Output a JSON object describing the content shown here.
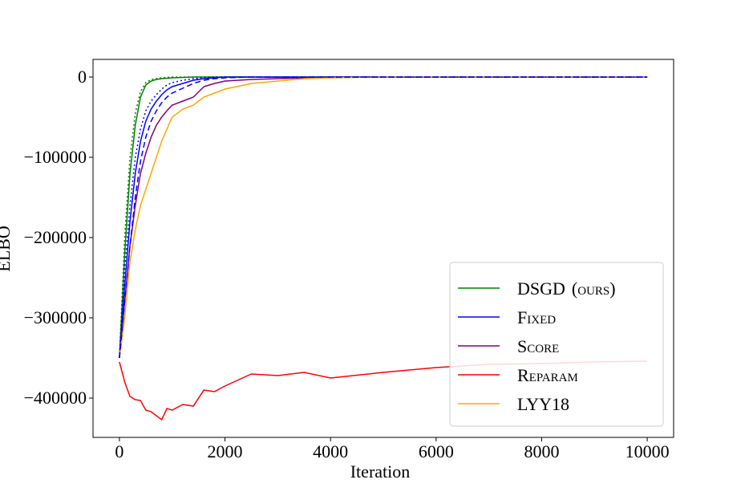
{
  "chart_data": {
    "type": "line",
    "x_label": "Iteration",
    "y_label": "ELBO",
    "x": [
      0,
      100,
      200,
      300,
      400,
      500,
      600,
      700,
      800,
      900,
      1000,
      1200,
      1400,
      1600,
      1800,
      2000,
      2500,
      3000,
      3500,
      4000,
      5000,
      6000,
      7000,
      8000,
      9000,
      10000
    ],
    "xlim": [
      -500,
      10500
    ],
    "ylim": [
      -449000,
      22000
    ],
    "xticks": [
      0,
      2000,
      4000,
      6000,
      8000,
      10000
    ],
    "yticks": [
      0,
      {
        "value": -100000,
        "label": "−100000"
      },
      {
        "value": -200000,
        "label": "−200000"
      },
      {
        "value": -300000,
        "label": "−300000"
      },
      {
        "value": -400000,
        "label": "−400000"
      }
    ],
    "legend": "lower right",
    "series": [
      {
        "name": "DSGD",
        "name_suffix": "(ours)",
        "color": "#008000",
        "dash": "solid",
        "values": [
          -350000,
          -220000,
          -120000,
          -60000,
          -25000,
          -10000,
          -5000,
          -3000,
          -2000,
          -1500,
          -1000,
          -500,
          0,
          0,
          0,
          0,
          0,
          0,
          0,
          0,
          0,
          0,
          0,
          0,
          0,
          0
        ]
      },
      {
        "name": "Fixed",
        "color": "#0000ff",
        "dash": "solid",
        "values": [
          -350000,
          -260000,
          -180000,
          -120000,
          -80000,
          -55000,
          -40000,
          -30000,
          -22000,
          -16000,
          -12000,
          -8000,
          -4000,
          -2000,
          -1000,
          0,
          0,
          0,
          0,
          0,
          0,
          0,
          0,
          0,
          0,
          0
        ]
      },
      {
        "name": "Score",
        "color": "#800080",
        "dash": "solid",
        "values": [
          -350000,
          -280000,
          -210000,
          -160000,
          -120000,
          -95000,
          -75000,
          -60000,
          -50000,
          -42000,
          -35000,
          -30000,
          -25000,
          -12000,
          -8000,
          -5000,
          -3000,
          -2000,
          -1000,
          0,
          0,
          0,
          0,
          0,
          0,
          0
        ]
      },
      {
        "name": "Reparam",
        "color": "#ff0000",
        "dash": "solid",
        "values": [
          -355000,
          -380000,
          -398000,
          -402000,
          -403000,
          -415000,
          -417000,
          -422000,
          -427000,
          -413000,
          -415000,
          -408000,
          -410000,
          -390000,
          -392000,
          -385000,
          -370000,
          -372000,
          -368000,
          -375000,
          -368000,
          -362000,
          -358000,
          -357000,
          -355000,
          -354000
        ]
      },
      {
        "name": "LYY18",
        "color": "#ffa500",
        "dash": "solid",
        "values": [
          -350000,
          -300000,
          -230000,
          -190000,
          -160000,
          -140000,
          -120000,
          -100000,
          -80000,
          -65000,
          -50000,
          -40000,
          -35000,
          -25000,
          -20000,
          -15000,
          -8000,
          -5000,
          -2000,
          -1000,
          0,
          0,
          0,
          0,
          0,
          0
        ]
      },
      {
        "color": "#008000",
        "dash": "dotted",
        "values": [
          -350000,
          -200000,
          -100000,
          -45000,
          -18000,
          -7000,
          -3000,
          -2000,
          -1000,
          -500,
          0,
          0,
          0,
          0,
          0,
          0,
          0,
          0,
          0,
          0,
          0,
          0,
          0,
          0,
          0,
          0
        ]
      },
      {
        "color": "#0000ff",
        "dash": "dashed",
        "values": [
          -350000,
          -280000,
          -210000,
          -150000,
          -105000,
          -75000,
          -55000,
          -42000,
          -32000,
          -25000,
          -20000,
          -14000,
          -8000,
          -4000,
          -2000,
          -1000,
          0,
          0,
          0,
          0,
          0,
          0,
          0,
          0,
          0,
          0
        ]
      },
      {
        "color": "#0000ff",
        "dash": "dotted",
        "values": [
          -350000,
          -240000,
          -160000,
          -100000,
          -65000,
          -42000,
          -30000,
          -22000,
          -15000,
          -10000,
          -7000,
          -4000,
          -2000,
          -1000,
          0,
          0,
          0,
          0,
          0,
          0,
          0,
          0,
          0,
          0,
          0,
          0
        ]
      }
    ]
  }
}
